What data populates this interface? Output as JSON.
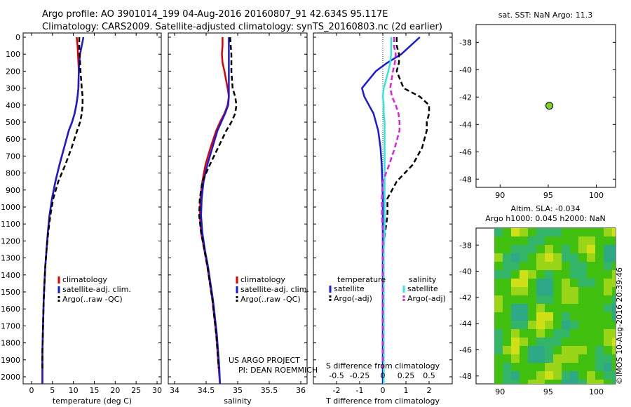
{
  "header": {
    "line1": "Argo profile: AO 3901014_199 04-Aug-2016 20160807_91 42.634S 95.117E",
    "line2": "Climatology: CARS2009. Satellite-adjusted climatology: synTS_20160803.nc (2d earlier)"
  },
  "colors": {
    "climatology": "#e00000",
    "satellite": "#1a1adc",
    "argo": "#000000",
    "sat_salinity": "#33e6e6",
    "argo_salinity": "#e020e0",
    "float_marker": "#7ed321"
  },
  "depth_ticks": [
    "0",
    "100",
    "200",
    "300",
    "400",
    "500",
    "600",
    "700",
    "800",
    "900",
    "1000",
    "1100",
    "1200",
    "1300",
    "1400",
    "1500",
    "1600",
    "1700",
    "1800",
    "1900",
    "2000"
  ],
  "charts": {
    "temperature": {
      "xlabel": "temperature (deg C)",
      "xticks": [
        "0",
        "5",
        "10",
        "15",
        "20",
        "25",
        "30"
      ],
      "legend": [
        "climatology",
        "satellite-adj. clim.",
        "Argo(..raw -QC)"
      ]
    },
    "salinity": {
      "xlabel": "salinity",
      "xticks": [
        "34",
        "34.5",
        "35",
        "35.5",
        "36"
      ],
      "legend": [
        "climatology",
        "satellite-adj. clim.",
        "Argo(..raw -QC)"
      ],
      "credit1": "US ARGO PROJECT",
      "credit2": "PI: DEAN ROEMMICH"
    },
    "difference": {
      "xlabel": "T difference from climatology",
      "xticks": [
        "-2",
        "-1",
        "0",
        "1",
        "2"
      ],
      "top_label": "S difference from climatology",
      "top_ticks": [
        "-0.5",
        "-0.25",
        "0",
        "0.25",
        "0.5"
      ],
      "legend_t_title": "temperature",
      "legend_s_title": "salinity",
      "legend_t": [
        "satellite",
        "Argo(-adj)"
      ],
      "legend_s": [
        "satellite",
        "Argo(-adj)"
      ]
    },
    "map1": {
      "title": "sat. SST: NaN Argo: 11.3",
      "xticks": [
        "90",
        "95",
        "100"
      ],
      "yticks": [
        "-38",
        "-40",
        "-42",
        "-44",
        "-46",
        "-48"
      ]
    },
    "map2": {
      "title1": "Altim. SLA: -0.034",
      "title2": "Argo h1000: 0.045 h2000: NaN",
      "xticks": [
        "90",
        "95",
        "100"
      ],
      "yticks": [
        "-38",
        "-40",
        "-42",
        "-44",
        "-46",
        "-48"
      ]
    }
  },
  "footer_stamp": "©IMOS 10-Aug-2016 20:39:46",
  "chart_data": [
    {
      "type": "line",
      "title": "",
      "xlabel": "temperature (deg C)",
      "ylabel": "",
      "xlim": [
        -2,
        31
      ],
      "ylim": [
        2080,
        0
      ],
      "series": [
        {
          "name": "climatology",
          "x": [
            10.8,
            11.0,
            11.1,
            11.2,
            11.3,
            11.2,
            11.0,
            10.7,
            10.3,
            9.7,
            8.9,
            7.8,
            6.7,
            5.7,
            4.9,
            4.3,
            3.9,
            3.6,
            3.3,
            3.1,
            2.9,
            2.8,
            2.7,
            2.6,
            2.6,
            2.6
          ],
          "y": [
            0,
            50,
            100,
            150,
            200,
            300,
            350,
            400,
            450,
            500,
            550,
            650,
            750,
            850,
            950,
            1050,
            1150,
            1250,
            1350,
            1450,
            1550,
            1650,
            1750,
            1850,
            1950,
            2050
          ]
        },
        {
          "name": "satellite-adj. clim.",
          "x": [
            12.4,
            12.0,
            11.6,
            11.4,
            11.3,
            11.2,
            11.0,
            10.7,
            10.3,
            9.7,
            8.9,
            7.8,
            6.7,
            5.7,
            4.9,
            4.3,
            3.9,
            3.6,
            3.3,
            3.1,
            2.9,
            2.8,
            2.7,
            2.6,
            2.6,
            2.6
          ],
          "y": [
            0,
            50,
            100,
            150,
            200,
            300,
            350,
            400,
            450,
            500,
            550,
            650,
            750,
            850,
            950,
            1050,
            1150,
            1250,
            1350,
            1450,
            1550,
            1650,
            1750,
            1850,
            1950,
            2050
          ]
        },
        {
          "name": "Argo(..raw -QC)",
          "x": [
            11.4,
            11.4,
            11.5,
            11.6,
            11.7,
            12.0,
            12.2,
            12.2,
            12.0,
            11.6,
            10.9,
            9.6,
            8.1,
            6.4,
            5.2,
            4.5,
            4.0,
            3.6,
            3.3,
            3.1,
            2.9,
            2.8,
            2.7,
            2.6,
            2.6
          ],
          "y": [
            0,
            50,
            100,
            150,
            200,
            300,
            350,
            400,
            450,
            500,
            550,
            650,
            750,
            850,
            950,
            1050,
            1150,
            1250,
            1350,
            1450,
            1550,
            1650,
            1750,
            1850,
            1950
          ]
        }
      ]
    },
    {
      "type": "line",
      "title": "",
      "xlabel": "salinity",
      "ylabel": "",
      "xlim": [
        33.9,
        36.1
      ],
      "ylim": [
        2080,
        0
      ],
      "series": [
        {
          "name": "climatology",
          "x": [
            34.76,
            34.76,
            34.75,
            34.76,
            34.79,
            34.84,
            34.86,
            34.84,
            34.79,
            34.72,
            34.66,
            34.57,
            34.49,
            34.44,
            34.41,
            34.4,
            34.42,
            34.47,
            34.52,
            34.56,
            34.6,
            34.63,
            34.66,
            34.68,
            34.7,
            34.72
          ],
          "y": [
            0,
            50,
            100,
            150,
            200,
            300,
            350,
            400,
            450,
            500,
            550,
            650,
            750,
            850,
            950,
            1050,
            1150,
            1250,
            1350,
            1450,
            1550,
            1650,
            1750,
            1850,
            1950,
            2050
          ]
        },
        {
          "name": "satellite-adj. clim.",
          "x": [
            34.86,
            34.86,
            34.86,
            34.86,
            34.86,
            34.86,
            34.86,
            34.85,
            34.8,
            34.74,
            34.68,
            34.6,
            34.52,
            34.46,
            34.43,
            34.42,
            34.44,
            34.48,
            34.53,
            34.57,
            34.61,
            34.64,
            34.67,
            34.69,
            34.71,
            34.72
          ],
          "y": [
            0,
            50,
            100,
            150,
            200,
            300,
            350,
            400,
            450,
            500,
            550,
            650,
            750,
            850,
            950,
            1050,
            1150,
            1250,
            1350,
            1450,
            1550,
            1650,
            1750,
            1850,
            1950,
            2050
          ]
        },
        {
          "name": "Argo(..raw -QC)",
          "x": [
            34.88,
            34.89,
            34.9,
            34.9,
            34.9,
            34.92,
            34.96,
            34.98,
            34.96,
            34.9,
            34.82,
            34.69,
            34.56,
            34.44,
            34.4,
            34.39,
            34.42,
            34.47,
            34.52,
            34.56,
            34.6,
            34.63,
            34.66,
            34.68,
            34.7
          ],
          "y": [
            0,
            50,
            100,
            150,
            200,
            300,
            350,
            400,
            450,
            500,
            550,
            650,
            750,
            850,
            950,
            1050,
            1150,
            1250,
            1350,
            1450,
            1550,
            1650,
            1750,
            1850,
            1950
          ]
        }
      ]
    },
    {
      "type": "line",
      "title": "",
      "xlabel": "T difference from climatology",
      "ylabel": "",
      "xlim": [
        -3.0,
        3.0
      ],
      "ylim": [
        2080,
        0
      ],
      "top_axis": {
        "label": "S difference from climatology",
        "xlim": [
          -0.75,
          0.75
        ]
      },
      "series": [
        {
          "name": "temperature satellite",
          "axis": "T",
          "x": [
            1.6,
            1.2,
            0.8,
            0.2,
            -0.3,
            -0.9,
            -0.8,
            -0.6,
            -0.4,
            -0.3,
            -0.2,
            -0.1,
            -0.05,
            -0.02,
            0,
            0,
            0,
            0,
            0,
            0,
            0,
            0,
            0,
            0,
            0,
            0
          ],
          "y": [
            0,
            50,
            100,
            150,
            200,
            300,
            350,
            400,
            450,
            500,
            550,
            650,
            750,
            850,
            950,
            1050,
            1150,
            1250,
            1350,
            1450,
            1550,
            1650,
            1750,
            1850,
            1950,
            2050
          ]
        },
        {
          "name": "temperature Argo(-adj)",
          "axis": "T",
          "x": [
            0.6,
            0.6,
            0.7,
            0.7,
            0.6,
            0.9,
            1.6,
            2.0,
            2.0,
            1.9,
            1.9,
            1.7,
            1.3,
            0.6,
            0.2,
            0.2,
            0.1,
            0,
            0,
            0,
            0,
            0,
            0,
            0,
            0
          ],
          "y": [
            0,
            50,
            100,
            150,
            200,
            300,
            350,
            400,
            450,
            500,
            550,
            650,
            750,
            850,
            950,
            1050,
            1150,
            1250,
            1350,
            1450,
            1550,
            1650,
            1750,
            1850,
            1950
          ]
        },
        {
          "name": "salinity satellite",
          "axis": "S",
          "x": [
            0.09,
            0.09,
            0.09,
            0.08,
            0.06,
            0.01,
            0,
            0.01,
            0.01,
            0.02,
            0.02,
            0.02,
            0.02,
            0.02,
            0.02,
            0.02,
            0.02,
            0.01,
            0.01,
            0.01,
            0.01,
            0.01,
            0.01,
            0.01,
            0.01,
            0.01
          ],
          "y": [
            0,
            50,
            100,
            150,
            200,
            300,
            350,
            400,
            450,
            500,
            550,
            650,
            750,
            850,
            950,
            1050,
            1150,
            1250,
            1350,
            1450,
            1550,
            1650,
            1750,
            1850,
            1950,
            2050
          ]
        },
        {
          "name": "salinity Argo(-adj)",
          "axis": "S",
          "x": [
            0.12,
            0.12,
            0.14,
            0.13,
            0.11,
            0.08,
            0.1,
            0.14,
            0.17,
            0.18,
            0.18,
            0.13,
            0.07,
            0,
            -0.01,
            -0.01,
            0,
            0,
            0,
            0,
            0,
            0,
            0,
            0,
            0
          ],
          "y": [
            0,
            50,
            100,
            150,
            200,
            300,
            350,
            400,
            450,
            500,
            550,
            650,
            750,
            850,
            950,
            1050,
            1150,
            1250,
            1350,
            1450,
            1550,
            1650,
            1750,
            1850,
            1950
          ]
        }
      ]
    },
    {
      "type": "scatter",
      "title": "sat. SST: NaN Argo: 11.3",
      "xlim": [
        87.5,
        102
      ],
      "ylim": [
        -48.6,
        -36.7
      ],
      "series": [
        {
          "name": "",
          "x": [
            95.117
          ],
          "y": [
            -42.634
          ]
        }
      ]
    },
    {
      "type": "heatmap",
      "title": "Altim. SLA: -0.034",
      "xlim": [
        87.5,
        102
      ],
      "ylim": [
        -48.6,
        -36.7
      ]
    }
  ]
}
